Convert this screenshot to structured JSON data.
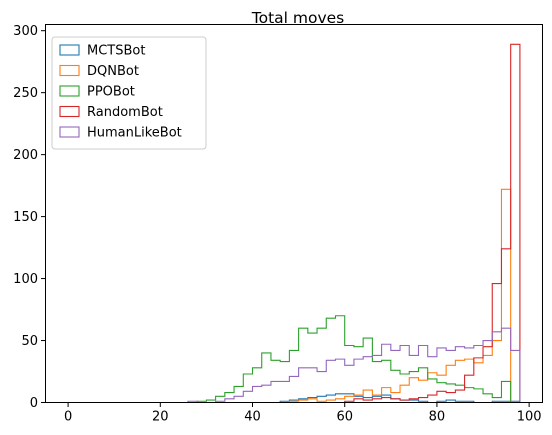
{
  "chart_data": {
    "type": "histogram",
    "title": "Total moves",
    "xlabel": "",
    "ylabel": "",
    "xlim": [
      -4.9,
      102.9
    ],
    "ylim": [
      0,
      305
    ],
    "xticks": [
      0,
      20,
      40,
      60,
      80,
      100
    ],
    "yticks": [
      0,
      50,
      100,
      150,
      200,
      250,
      300
    ],
    "bin_start": 0,
    "bin_width": 2,
    "legend_position": "upper-left",
    "grid": false,
    "series": [
      {
        "name": "MCTSBot",
        "color": "#1f77b4",
        "counts": [
          0,
          0,
          0,
          0,
          0,
          0,
          0,
          0,
          0,
          0,
          0,
          0,
          0,
          0,
          0,
          0,
          0,
          0,
          0,
          0,
          0,
          0,
          0,
          1,
          2,
          3,
          4,
          5,
          6,
          7,
          7,
          5,
          4,
          5,
          6,
          3,
          2,
          2,
          1,
          0,
          1,
          2,
          1,
          1,
          0,
          0,
          1,
          1,
          1
        ]
      },
      {
        "name": "DQNBot",
        "color": "#ff7f0e",
        "counts": [
          0,
          0,
          0,
          0,
          0,
          0,
          0,
          0,
          0,
          0,
          0,
          0,
          0,
          0,
          0,
          0,
          0,
          0,
          0,
          0,
          0,
          0,
          0,
          0,
          1,
          2,
          3,
          1,
          2,
          3,
          5,
          6,
          10,
          6,
          12,
          8,
          14,
          20,
          18,
          24,
          22,
          30,
          34,
          35,
          32,
          38,
          50,
          172,
          0
        ]
      },
      {
        "name": "PPOBot",
        "color": "#2ca02c",
        "counts": [
          0,
          0,
          0,
          0,
          0,
          0,
          0,
          0,
          0,
          0,
          0,
          0,
          0,
          0,
          1,
          2,
          5,
          8,
          13,
          23,
          28,
          40,
          34,
          33,
          42,
          60,
          56,
          60,
          68,
          70,
          46,
          45,
          52,
          33,
          34,
          26,
          23,
          25,
          28,
          19,
          16,
          15,
          14,
          12,
          11,
          7,
          4,
          17,
          0
        ]
      },
      {
        "name": "RandomBot",
        "color": "#d62728",
        "counts": [
          0,
          0,
          0,
          0,
          0,
          0,
          0,
          0,
          0,
          0,
          0,
          0,
          0,
          0,
          0,
          0,
          0,
          0,
          0,
          0,
          0,
          0,
          0,
          0,
          0,
          0,
          0,
          0,
          0,
          0,
          1,
          3,
          2,
          3,
          4,
          3,
          2,
          3,
          4,
          6,
          9,
          8,
          10,
          22,
          36,
          45,
          96,
          124,
          289
        ]
      },
      {
        "name": "HumanLikeBot",
        "color": "#9467bd",
        "counts": [
          0,
          0,
          0,
          0,
          0,
          0,
          0,
          0,
          0,
          0,
          0,
          0,
          0,
          1,
          0,
          0,
          1,
          3,
          5,
          9,
          13,
          14,
          17,
          17,
          21,
          28,
          28,
          25,
          34,
          35,
          30,
          35,
          37,
          38,
          47,
          42,
          46,
          38,
          46,
          37,
          44,
          42,
          45,
          44,
          46,
          50,
          57,
          60,
          42
        ]
      }
    ]
  }
}
